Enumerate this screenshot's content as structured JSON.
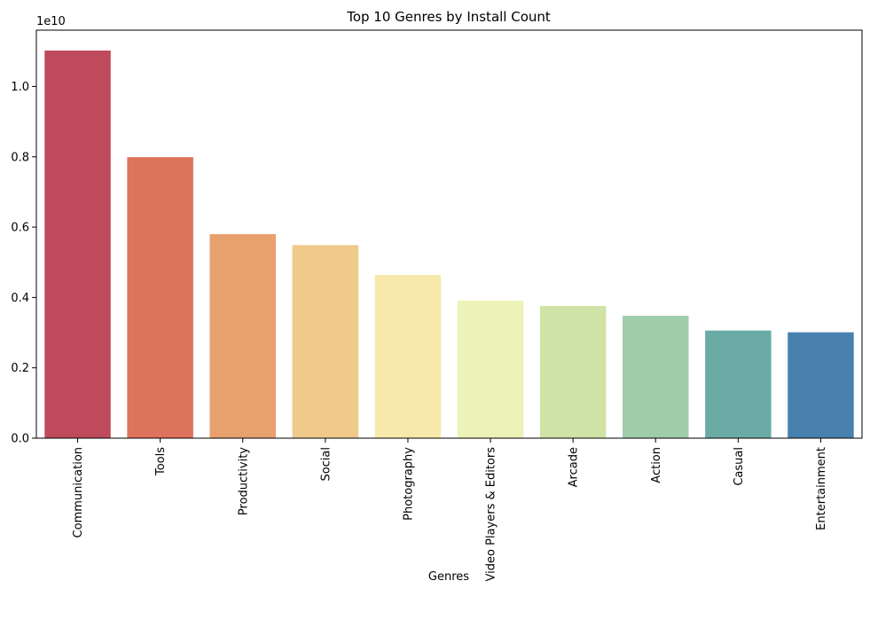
{
  "chart_data": {
    "type": "bar",
    "title": "Top 10 Genres by Install Count",
    "xlabel": "Genres",
    "ylabel": "",
    "offset_label": "1e10",
    "ylim": [
      0,
      1.16
    ],
    "yticks": [
      0.0,
      0.2,
      0.4,
      0.6,
      0.8,
      1.0
    ],
    "ytick_labels": [
      "0.0",
      "0.2",
      "0.4",
      "0.6",
      "0.8",
      "1.0"
    ],
    "grid": false,
    "categories": [
      "Communication",
      "Tools",
      "Productivity",
      "Social",
      "Photography",
      "Video Players & Editors",
      "Arcade",
      "Action",
      "Casual",
      "Entertainment"
    ],
    "values": [
      1.102,
      0.799,
      0.58,
      0.549,
      0.464,
      0.391,
      0.376,
      0.348,
      0.306,
      0.301
    ],
    "colors": [
      "#be4a5b",
      "#dc735a",
      "#e8a06d",
      "#efca8a",
      "#f6e9ab",
      "#edf2b8",
      "#d0e3a6",
      "#a0cda9",
      "#6aaba5",
      "#4880ad"
    ]
  }
}
